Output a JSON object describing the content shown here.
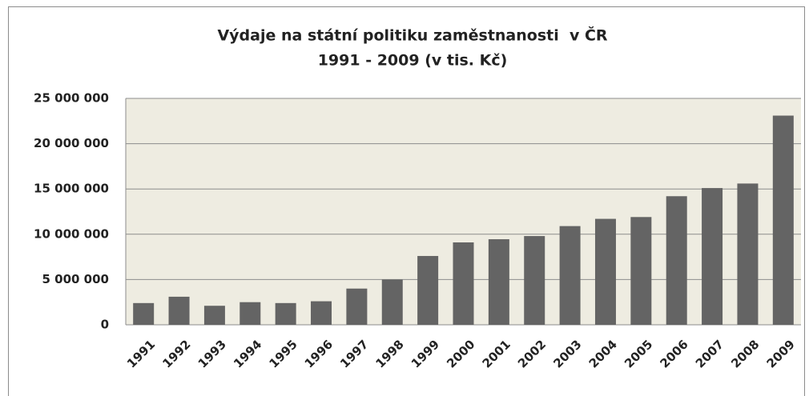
{
  "chart_data": {
    "type": "bar",
    "title": "Výdaje na státní politiku zaměstnanosti  v ČR",
    "subtitle": "1991 - 2009 (v tis. Kč)",
    "categories": [
      "1991",
      "1992",
      "1993",
      "1994",
      "1995",
      "1996",
      "1997",
      "1998",
      "1999",
      "2000",
      "2001",
      "2002",
      "2003",
      "2004",
      "2005",
      "2006",
      "2007",
      "2008",
      "2009"
    ],
    "values": [
      2400000,
      3100000,
      2100000,
      2500000,
      2400000,
      2600000,
      4000000,
      5000000,
      7600000,
      9100000,
      9450000,
      9800000,
      10900000,
      11700000,
      11900000,
      14200000,
      15100000,
      15600000,
      23100000
    ],
    "color": "#646464",
    "ylim": [
      0,
      25000000
    ],
    "yticks": [
      0,
      {
        "value": 5000000,
        "label": "5 000 000"
      },
      {
        "value": 10000000,
        "label": "10 000 000"
      },
      {
        "value": 15000000,
        "label": "15 000 000"
      },
      {
        "value": 20000000,
        "label": "20 000 000"
      },
      {
        "value": 25000000,
        "label": "25 000 000"
      }
    ],
    "grid": true
  }
}
